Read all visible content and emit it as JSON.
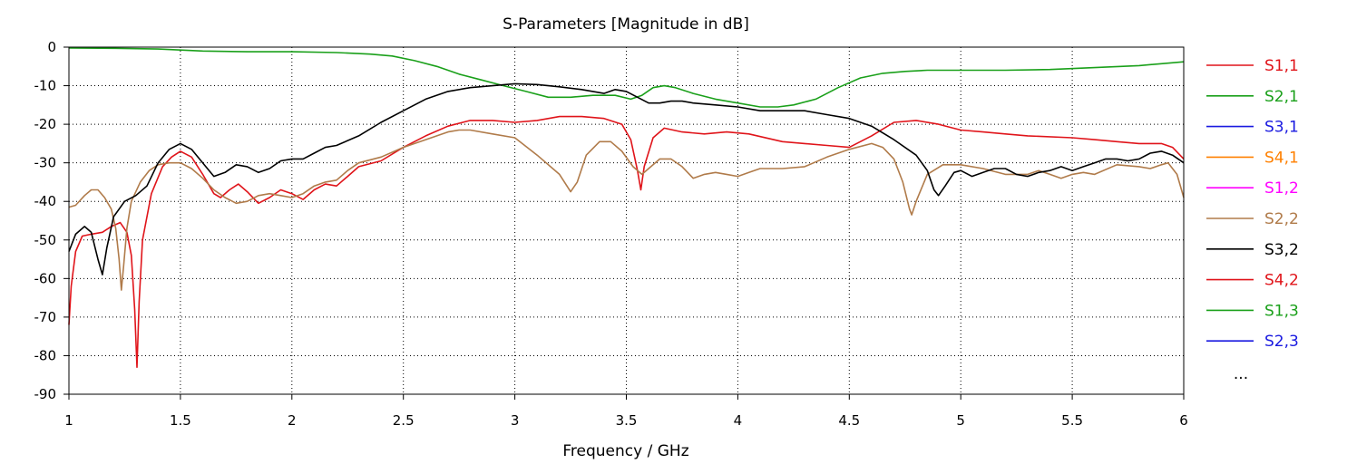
{
  "chart_data": {
    "type": "line",
    "title": "S-Parameters [Magnitude in dB]",
    "xlabel": "Frequency / GHz",
    "ylabel": "",
    "xlim": [
      1,
      6
    ],
    "ylim": [
      -90,
      0
    ],
    "xticks": [
      1,
      1.5,
      2,
      2.5,
      3,
      3.5,
      4,
      4.5,
      5,
      5.5,
      6
    ],
    "yticks": [
      0,
      -10,
      -20,
      -30,
      -40,
      -50,
      -60,
      -70,
      -80,
      -90
    ],
    "grid": true,
    "legend_position": "right",
    "legend_more": "...",
    "series": [
      {
        "name": "S1,1",
        "color": "#e0141a",
        "visible": true,
        "values": [
          [
            1.0,
            -72
          ],
          [
            1.01,
            -62
          ],
          [
            1.03,
            -53
          ],
          [
            1.06,
            -49
          ],
          [
            1.1,
            -48.5
          ],
          [
            1.15,
            -48
          ],
          [
            1.19,
            -46.5
          ],
          [
            1.23,
            -45.5
          ],
          [
            1.26,
            -48
          ],
          [
            1.28,
            -54
          ],
          [
            1.295,
            -68
          ],
          [
            1.305,
            -83
          ],
          [
            1.315,
            -66
          ],
          [
            1.33,
            -50
          ],
          [
            1.37,
            -38
          ],
          [
            1.42,
            -31
          ],
          [
            1.46,
            -28.5
          ],
          [
            1.5,
            -27
          ],
          [
            1.55,
            -28.5
          ],
          [
            1.6,
            -33
          ],
          [
            1.65,
            -38
          ],
          [
            1.68,
            -39
          ],
          [
            1.72,
            -37
          ],
          [
            1.76,
            -35.5
          ],
          [
            1.8,
            -37.5
          ],
          [
            1.85,
            -40.5
          ],
          [
            1.9,
            -39
          ],
          [
            1.95,
            -37
          ],
          [
            2.0,
            -38
          ],
          [
            2.05,
            -39.5
          ],
          [
            2.1,
            -37
          ],
          [
            2.15,
            -35.5
          ],
          [
            2.2,
            -36
          ],
          [
            2.25,
            -33.5
          ],
          [
            2.3,
            -31
          ],
          [
            2.4,
            -29.5
          ],
          [
            2.5,
            -26
          ],
          [
            2.6,
            -23
          ],
          [
            2.7,
            -20.5
          ],
          [
            2.8,
            -19
          ],
          [
            2.9,
            -19
          ],
          [
            3.0,
            -19.5
          ],
          [
            3.1,
            -19
          ],
          [
            3.2,
            -18
          ],
          [
            3.3,
            -18
          ],
          [
            3.4,
            -18.5
          ],
          [
            3.48,
            -20
          ],
          [
            3.52,
            -24
          ],
          [
            3.55,
            -32
          ],
          [
            3.565,
            -37
          ],
          [
            3.58,
            -31
          ],
          [
            3.62,
            -23.5
          ],
          [
            3.67,
            -21
          ],
          [
            3.75,
            -22
          ],
          [
            3.85,
            -22.5
          ],
          [
            3.95,
            -22
          ],
          [
            4.05,
            -22.5
          ],
          [
            4.2,
            -24.5
          ],
          [
            4.3,
            -25
          ],
          [
            4.4,
            -25.5
          ],
          [
            4.5,
            -26
          ],
          [
            4.6,
            -23
          ],
          [
            4.7,
            -19.5
          ],
          [
            4.8,
            -19
          ],
          [
            4.9,
            -20
          ],
          [
            5.0,
            -21.5
          ],
          [
            5.1,
            -22
          ],
          [
            5.2,
            -22.5
          ],
          [
            5.3,
            -23
          ],
          [
            5.5,
            -23.5
          ],
          [
            5.6,
            -24
          ],
          [
            5.7,
            -24.5
          ],
          [
            5.8,
            -25
          ],
          [
            5.9,
            -25
          ],
          [
            5.95,
            -26
          ],
          [
            6.0,
            -29
          ]
        ]
      },
      {
        "name": "S2,1",
        "color": "#1aa01a",
        "visible": true,
        "values": [
          [
            1.0,
            -0.2
          ],
          [
            1.2,
            -0.3
          ],
          [
            1.4,
            -0.5
          ],
          [
            1.6,
            -1
          ],
          [
            1.8,
            -1.2
          ],
          [
            2.0,
            -1.2
          ],
          [
            2.2,
            -1.4
          ],
          [
            2.35,
            -1.8
          ],
          [
            2.45,
            -2.3
          ],
          [
            2.55,
            -3.5
          ],
          [
            2.65,
            -5
          ],
          [
            2.75,
            -7
          ],
          [
            2.85,
            -8.5
          ],
          [
            2.95,
            -10
          ],
          [
            3.05,
            -11.5
          ],
          [
            3.15,
            -13
          ],
          [
            3.25,
            -13
          ],
          [
            3.35,
            -12.5
          ],
          [
            3.45,
            -12.5
          ],
          [
            3.52,
            -13.5
          ],
          [
            3.57,
            -12.5
          ],
          [
            3.62,
            -10.5
          ],
          [
            3.67,
            -10
          ],
          [
            3.72,
            -10.5
          ],
          [
            3.8,
            -12
          ],
          [
            3.9,
            -13.5
          ],
          [
            4.0,
            -14.5
          ],
          [
            4.1,
            -15.5
          ],
          [
            4.18,
            -15.5
          ],
          [
            4.25,
            -15
          ],
          [
            4.35,
            -13.5
          ],
          [
            4.45,
            -10.5
          ],
          [
            4.55,
            -8
          ],
          [
            4.65,
            -6.8
          ],
          [
            4.75,
            -6.3
          ],
          [
            4.85,
            -6
          ],
          [
            5.0,
            -6
          ],
          [
            5.2,
            -6
          ],
          [
            5.4,
            -5.8
          ],
          [
            5.6,
            -5.3
          ],
          [
            5.8,
            -4.8
          ],
          [
            6.0,
            -3.8
          ]
        ]
      },
      {
        "name": "S3,1",
        "color": "#1a1ae0",
        "visible": false,
        "values": []
      },
      {
        "name": "S4,1",
        "color": "#ff8000",
        "visible": false,
        "values": []
      },
      {
        "name": "S1,2",
        "color": "#ff00ff",
        "visible": false,
        "values": []
      },
      {
        "name": "S2,2",
        "color": "#b07b4a",
        "visible": true,
        "values": [
          [
            1.0,
            -41.5
          ],
          [
            1.03,
            -41
          ],
          [
            1.07,
            -38.5
          ],
          [
            1.1,
            -37
          ],
          [
            1.13,
            -37
          ],
          [
            1.16,
            -39
          ],
          [
            1.19,
            -42
          ],
          [
            1.21,
            -47
          ],
          [
            1.225,
            -55
          ],
          [
            1.235,
            -63
          ],
          [
            1.245,
            -57
          ],
          [
            1.26,
            -47
          ],
          [
            1.28,
            -40
          ],
          [
            1.32,
            -35
          ],
          [
            1.36,
            -32
          ],
          [
            1.4,
            -30.5
          ],
          [
            1.45,
            -30
          ],
          [
            1.5,
            -30
          ],
          [
            1.55,
            -31.5
          ],
          [
            1.6,
            -34
          ],
          [
            1.65,
            -37
          ],
          [
            1.7,
            -39
          ],
          [
            1.75,
            -40.5
          ],
          [
            1.8,
            -40
          ],
          [
            1.85,
            -38.5
          ],
          [
            1.9,
            -38
          ],
          [
            1.95,
            -38.5
          ],
          [
            2.0,
            -39
          ],
          [
            2.05,
            -38
          ],
          [
            2.1,
            -36
          ],
          [
            2.15,
            -35
          ],
          [
            2.2,
            -34.5
          ],
          [
            2.25,
            -32
          ],
          [
            2.3,
            -30
          ],
          [
            2.4,
            -28.5
          ],
          [
            2.5,
            -26
          ],
          [
            2.6,
            -24
          ],
          [
            2.7,
            -22
          ],
          [
            2.75,
            -21.5
          ],
          [
            2.8,
            -21.5
          ],
          [
            2.9,
            -22.5
          ],
          [
            3.0,
            -23.5
          ],
          [
            3.1,
            -28
          ],
          [
            3.2,
            -33
          ],
          [
            3.25,
            -37.5
          ],
          [
            3.28,
            -35
          ],
          [
            3.32,
            -28
          ],
          [
            3.38,
            -24.5
          ],
          [
            3.43,
            -24.5
          ],
          [
            3.48,
            -27
          ],
          [
            3.53,
            -31
          ],
          [
            3.57,
            -33
          ],
          [
            3.6,
            -31.5
          ],
          [
            3.65,
            -29
          ],
          [
            3.7,
            -29
          ],
          [
            3.75,
            -31
          ],
          [
            3.8,
            -34
          ],
          [
            3.85,
            -33
          ],
          [
            3.9,
            -32.5
          ],
          [
            3.95,
            -33
          ],
          [
            4.0,
            -33.5
          ],
          [
            4.05,
            -32.5
          ],
          [
            4.1,
            -31.5
          ],
          [
            4.2,
            -31.5
          ],
          [
            4.3,
            -31
          ],
          [
            4.4,
            -28.5
          ],
          [
            4.5,
            -26.5
          ],
          [
            4.6,
            -25
          ],
          [
            4.65,
            -26
          ],
          [
            4.7,
            -29
          ],
          [
            4.74,
            -35
          ],
          [
            4.77,
            -42
          ],
          [
            4.78,
            -43.5
          ],
          [
            4.8,
            -40
          ],
          [
            4.85,
            -33
          ],
          [
            4.92,
            -30.5
          ],
          [
            5.0,
            -30.5
          ],
          [
            5.1,
            -31.5
          ],
          [
            5.2,
            -33
          ],
          [
            5.3,
            -33
          ],
          [
            5.35,
            -32
          ],
          [
            5.4,
            -33
          ],
          [
            5.45,
            -34
          ],
          [
            5.5,
            -33
          ],
          [
            5.55,
            -32.5
          ],
          [
            5.6,
            -33
          ],
          [
            5.7,
            -30.5
          ],
          [
            5.8,
            -31
          ],
          [
            5.85,
            -31.5
          ],
          [
            5.9,
            -30.5
          ],
          [
            5.93,
            -30
          ],
          [
            5.97,
            -33
          ],
          [
            6.0,
            -39
          ]
        ]
      },
      {
        "name": "S3,2",
        "color": "#000000",
        "visible": true,
        "values": [
          [
            1.0,
            -53
          ],
          [
            1.03,
            -48.5
          ],
          [
            1.07,
            -46.5
          ],
          [
            1.1,
            -48
          ],
          [
            1.13,
            -55
          ],
          [
            1.15,
            -59
          ],
          [
            1.17,
            -52
          ],
          [
            1.2,
            -44
          ],
          [
            1.25,
            -40
          ],
          [
            1.3,
            -38.5
          ],
          [
            1.35,
            -36
          ],
          [
            1.4,
            -30
          ],
          [
            1.45,
            -26.5
          ],
          [
            1.5,
            -25
          ],
          [
            1.55,
            -26.5
          ],
          [
            1.6,
            -30
          ],
          [
            1.65,
            -33.5
          ],
          [
            1.7,
            -32.5
          ],
          [
            1.75,
            -30.5
          ],
          [
            1.8,
            -31
          ],
          [
            1.85,
            -32.5
          ],
          [
            1.9,
            -31.5
          ],
          [
            1.95,
            -29.5
          ],
          [
            2.0,
            -29
          ],
          [
            2.05,
            -29
          ],
          [
            2.1,
            -27.5
          ],
          [
            2.15,
            -26
          ],
          [
            2.2,
            -25.5
          ],
          [
            2.3,
            -23
          ],
          [
            2.4,
            -19.5
          ],
          [
            2.5,
            -16.5
          ],
          [
            2.6,
            -13.5
          ],
          [
            2.7,
            -11.5
          ],
          [
            2.8,
            -10.5
          ],
          [
            2.9,
            -10
          ],
          [
            3.0,
            -9.5
          ],
          [
            3.1,
            -9.7
          ],
          [
            3.2,
            -10.3
          ],
          [
            3.3,
            -11
          ],
          [
            3.4,
            -12
          ],
          [
            3.45,
            -11
          ],
          [
            3.5,
            -11.5
          ],
          [
            3.55,
            -13
          ],
          [
            3.6,
            -14.5
          ],
          [
            3.65,
            -14.5
          ],
          [
            3.7,
            -14
          ],
          [
            3.75,
            -14
          ],
          [
            3.8,
            -14.5
          ],
          [
            3.9,
            -15
          ],
          [
            4.0,
            -15.5
          ],
          [
            4.1,
            -16.5
          ],
          [
            4.2,
            -16.5
          ],
          [
            4.3,
            -16.5
          ],
          [
            4.4,
            -17.5
          ],
          [
            4.5,
            -18.5
          ],
          [
            4.6,
            -20.5
          ],
          [
            4.7,
            -24
          ],
          [
            4.8,
            -28
          ],
          [
            4.85,
            -32
          ],
          [
            4.88,
            -37
          ],
          [
            4.9,
            -38.5
          ],
          [
            4.93,
            -36
          ],
          [
            4.97,
            -32.5
          ],
          [
            5.0,
            -32
          ],
          [
            5.05,
            -33.5
          ],
          [
            5.1,
            -32.5
          ],
          [
            5.15,
            -31.5
          ],
          [
            5.2,
            -31.5
          ],
          [
            5.25,
            -33
          ],
          [
            5.3,
            -33.5
          ],
          [
            5.35,
            -32.5
          ],
          [
            5.4,
            -32
          ],
          [
            5.45,
            -31
          ],
          [
            5.5,
            -32
          ],
          [
            5.55,
            -31
          ],
          [
            5.6,
            -30
          ],
          [
            5.65,
            -29
          ],
          [
            5.7,
            -29
          ],
          [
            5.75,
            -29.5
          ],
          [
            5.8,
            -29
          ],
          [
            5.85,
            -27.5
          ],
          [
            5.9,
            -27
          ],
          [
            5.95,
            -28
          ],
          [
            6.0,
            -30
          ]
        ]
      },
      {
        "name": "S4,2",
        "color": "#e0141a",
        "visible": false,
        "values": []
      },
      {
        "name": "S1,3",
        "color": "#1aa01a",
        "visible": false,
        "values": []
      },
      {
        "name": "S2,3",
        "color": "#1a1ae0",
        "visible": false,
        "values": []
      }
    ]
  }
}
